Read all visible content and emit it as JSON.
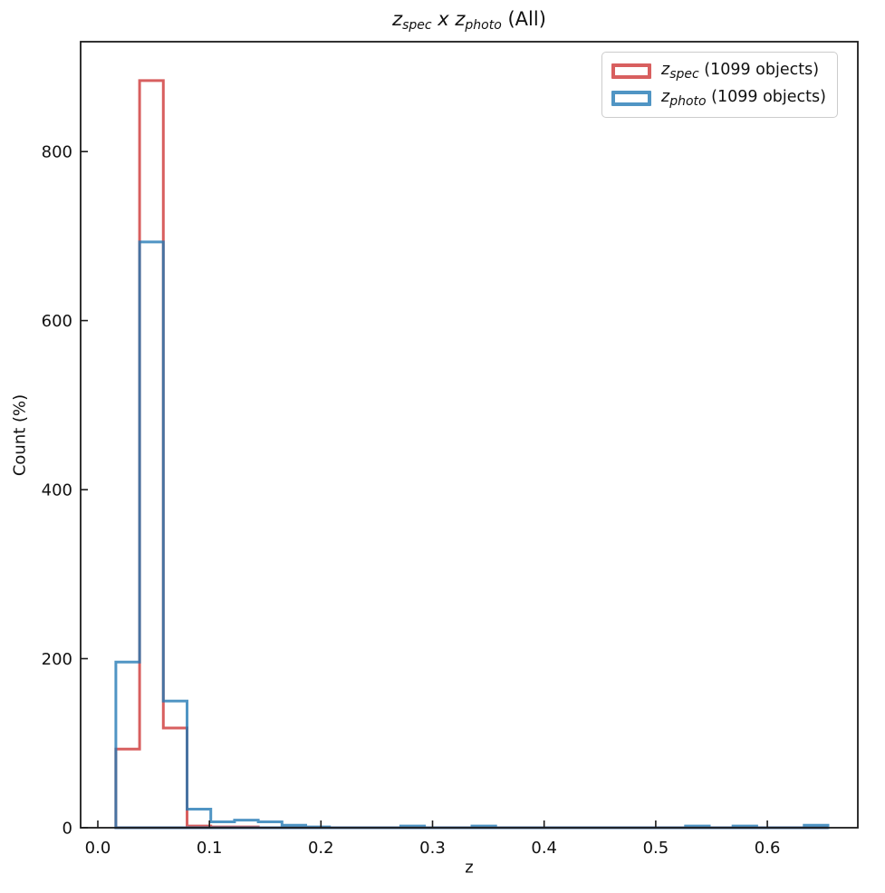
{
  "figure": {
    "background": "#ffffff"
  },
  "title": {
    "z1": "z",
    "z1_sub": "spec",
    "mid": " x ",
    "z2": "z",
    "z2_sub": "photo",
    "suffix": " (All)"
  },
  "axes": {
    "xlabel": "z",
    "ylabel": "Count (%)",
    "spine_color": "#1c1c1c",
    "tick_label_color": "#111111"
  },
  "legend": {
    "location": "upper right",
    "entries": [
      {
        "symbol": "z",
        "sub": "spec",
        "rest": " (1099 objects)",
        "color": "#d85f5f"
      },
      {
        "symbol": "z",
        "sub": "photo",
        "rest": " (1099 objects)",
        "color": "#5095c4"
      }
    ]
  },
  "chart_data": {
    "type": "bar",
    "subtype": "step-histogram",
    "title": "z_spec x z_photo (All)",
    "xlabel": "z",
    "ylabel": "Count (%)",
    "xlim": [
      -0.0154,
      0.6811
    ],
    "ylim": [
      0,
      930
    ],
    "xticks": [
      0.0,
      0.1,
      0.2,
      0.3,
      0.4,
      0.5,
      0.6
    ],
    "yticks": [
      0,
      200,
      400,
      600,
      800
    ],
    "grid": false,
    "legend_position": "upper right",
    "bin_start": 0.0162,
    "bin_width": 0.02127,
    "series": [
      {
        "name": "z_spec (1099 objects)",
        "total_objects": 1099,
        "color": "#d85f5f",
        "alpha": 1,
        "counts": [
          93,
          884,
          118,
          2,
          1,
          1,
          0,
          0,
          0,
          0,
          0,
          0,
          0,
          0,
          0,
          0,
          0,
          0,
          0,
          0,
          0,
          0,
          0,
          0,
          0,
          0,
          0,
          0,
          0,
          0
        ]
      },
      {
        "name": "z_photo (1099 objects)",
        "total_objects": 1099,
        "color": "#1f77b4",
        "alpha": 0.78,
        "counts": [
          196,
          693,
          150,
          22,
          7,
          9,
          7,
          3,
          1,
          0,
          0,
          0,
          2,
          0,
          0,
          2,
          0,
          0,
          0,
          0,
          0,
          0,
          0,
          0,
          2,
          0,
          2,
          0,
          0,
          3
        ]
      }
    ]
  }
}
